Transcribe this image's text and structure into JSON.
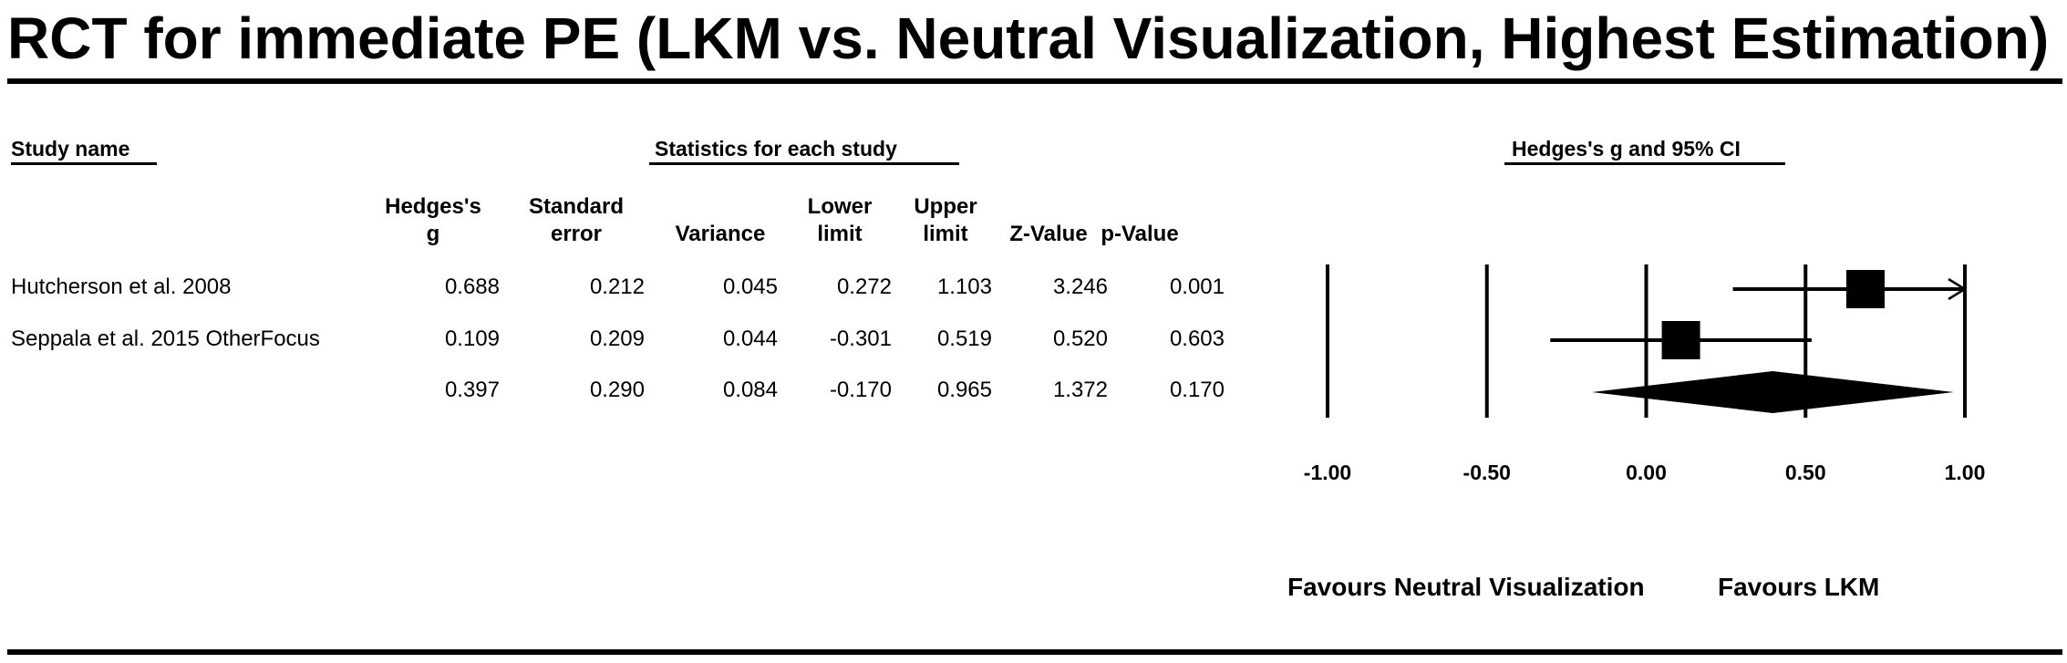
{
  "title": "RCT for immediate PE (LKM vs. Neutral Visualization, Highest Estimation)",
  "headers": {
    "study_name": "Study name",
    "statistics": "Statistics for each study",
    "forest": "Hedges's g and 95% CI"
  },
  "columns": [
    {
      "line1": "Hedges's",
      "line2": "g"
    },
    {
      "line1": "Standard",
      "line2": "error"
    },
    {
      "line1": "",
      "line2": "Variance"
    },
    {
      "line1": "Lower",
      "line2": "limit"
    },
    {
      "line1": "Upper",
      "line2": "limit"
    },
    {
      "line1": "",
      "line2": "Z-Value"
    },
    {
      "line1": "",
      "line2": "p-Value"
    }
  ],
  "rows": [
    {
      "name": "Hutcherson et al. 2008",
      "values": [
        "0.688",
        "0.212",
        "0.045",
        "0.272",
        "1.103",
        "3.246",
        "0.001"
      ]
    },
    {
      "name": "Seppala et al. 2015 OtherFocus",
      "values": [
        "0.109",
        "0.209",
        "0.044",
        "-0.301",
        "0.519",
        "0.520",
        "0.603"
      ]
    },
    {
      "name": "",
      "values": [
        "0.397",
        "0.290",
        "0.084",
        "-0.170",
        "0.965",
        "1.372",
        "0.170"
      ]
    }
  ],
  "favours": {
    "left": "Favours Neutral Visualization",
    "right": "Favours LKM"
  },
  "chart_data": {
    "type": "forest",
    "xlim": [
      -1.0,
      1.0
    ],
    "ticks": [
      -1.0,
      -0.5,
      0.0,
      0.5,
      1.0
    ],
    "tick_labels": [
      "-1.00",
      "-0.50",
      "0.00",
      "0.50",
      "1.00"
    ],
    "studies": [
      {
        "name": "Hutcherson et al. 2008",
        "g": 0.688,
        "lower": 0.272,
        "upper": 1.103,
        "truncated_right": true
      },
      {
        "name": "Seppala et al. 2015 OtherFocus",
        "g": 0.109,
        "lower": -0.301,
        "upper": 0.519
      }
    ],
    "summary": {
      "g": 0.397,
      "lower": -0.17,
      "upper": 0.965
    }
  }
}
